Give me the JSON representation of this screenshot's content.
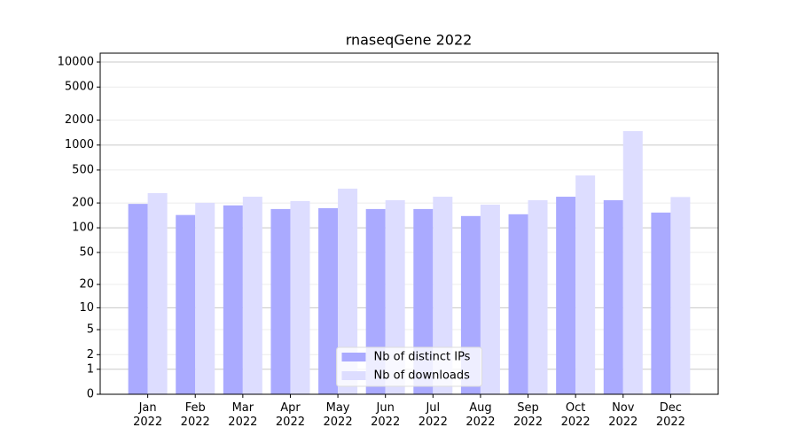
{
  "chart_data": {
    "type": "bar",
    "title": "rnaseqGene 2022",
    "categories": [
      "Jan\n2022",
      "Feb\n2022",
      "Mar\n2022",
      "Apr\n2022",
      "May\n2022",
      "Jun\n2022",
      "Jul\n2022",
      "Aug\n2022",
      "Sep\n2022",
      "Oct\n2022",
      "Nov\n2022",
      "Dec\n2022"
    ],
    "series": [
      {
        "name": "Nb of distinct IPs",
        "color": "#aaaaff",
        "values": [
          195,
          143,
          187,
          169,
          173,
          169,
          169,
          139,
          146,
          238,
          216,
          153
        ]
      },
      {
        "name": "Nb of downloads",
        "color": "#ddddff",
        "values": [
          263,
          201,
          238,
          211,
          298,
          216,
          238,
          191,
          216,
          430,
          1472,
          236
        ]
      }
    ],
    "yscale": "log1p",
    "ylim": [
      0,
      12790
    ],
    "yticks": [
      0,
      1,
      2,
      5,
      10,
      20,
      50,
      100,
      200,
      500,
      1000,
      2000,
      5000,
      10000
    ],
    "grid": true,
    "legend": "lower center"
  }
}
